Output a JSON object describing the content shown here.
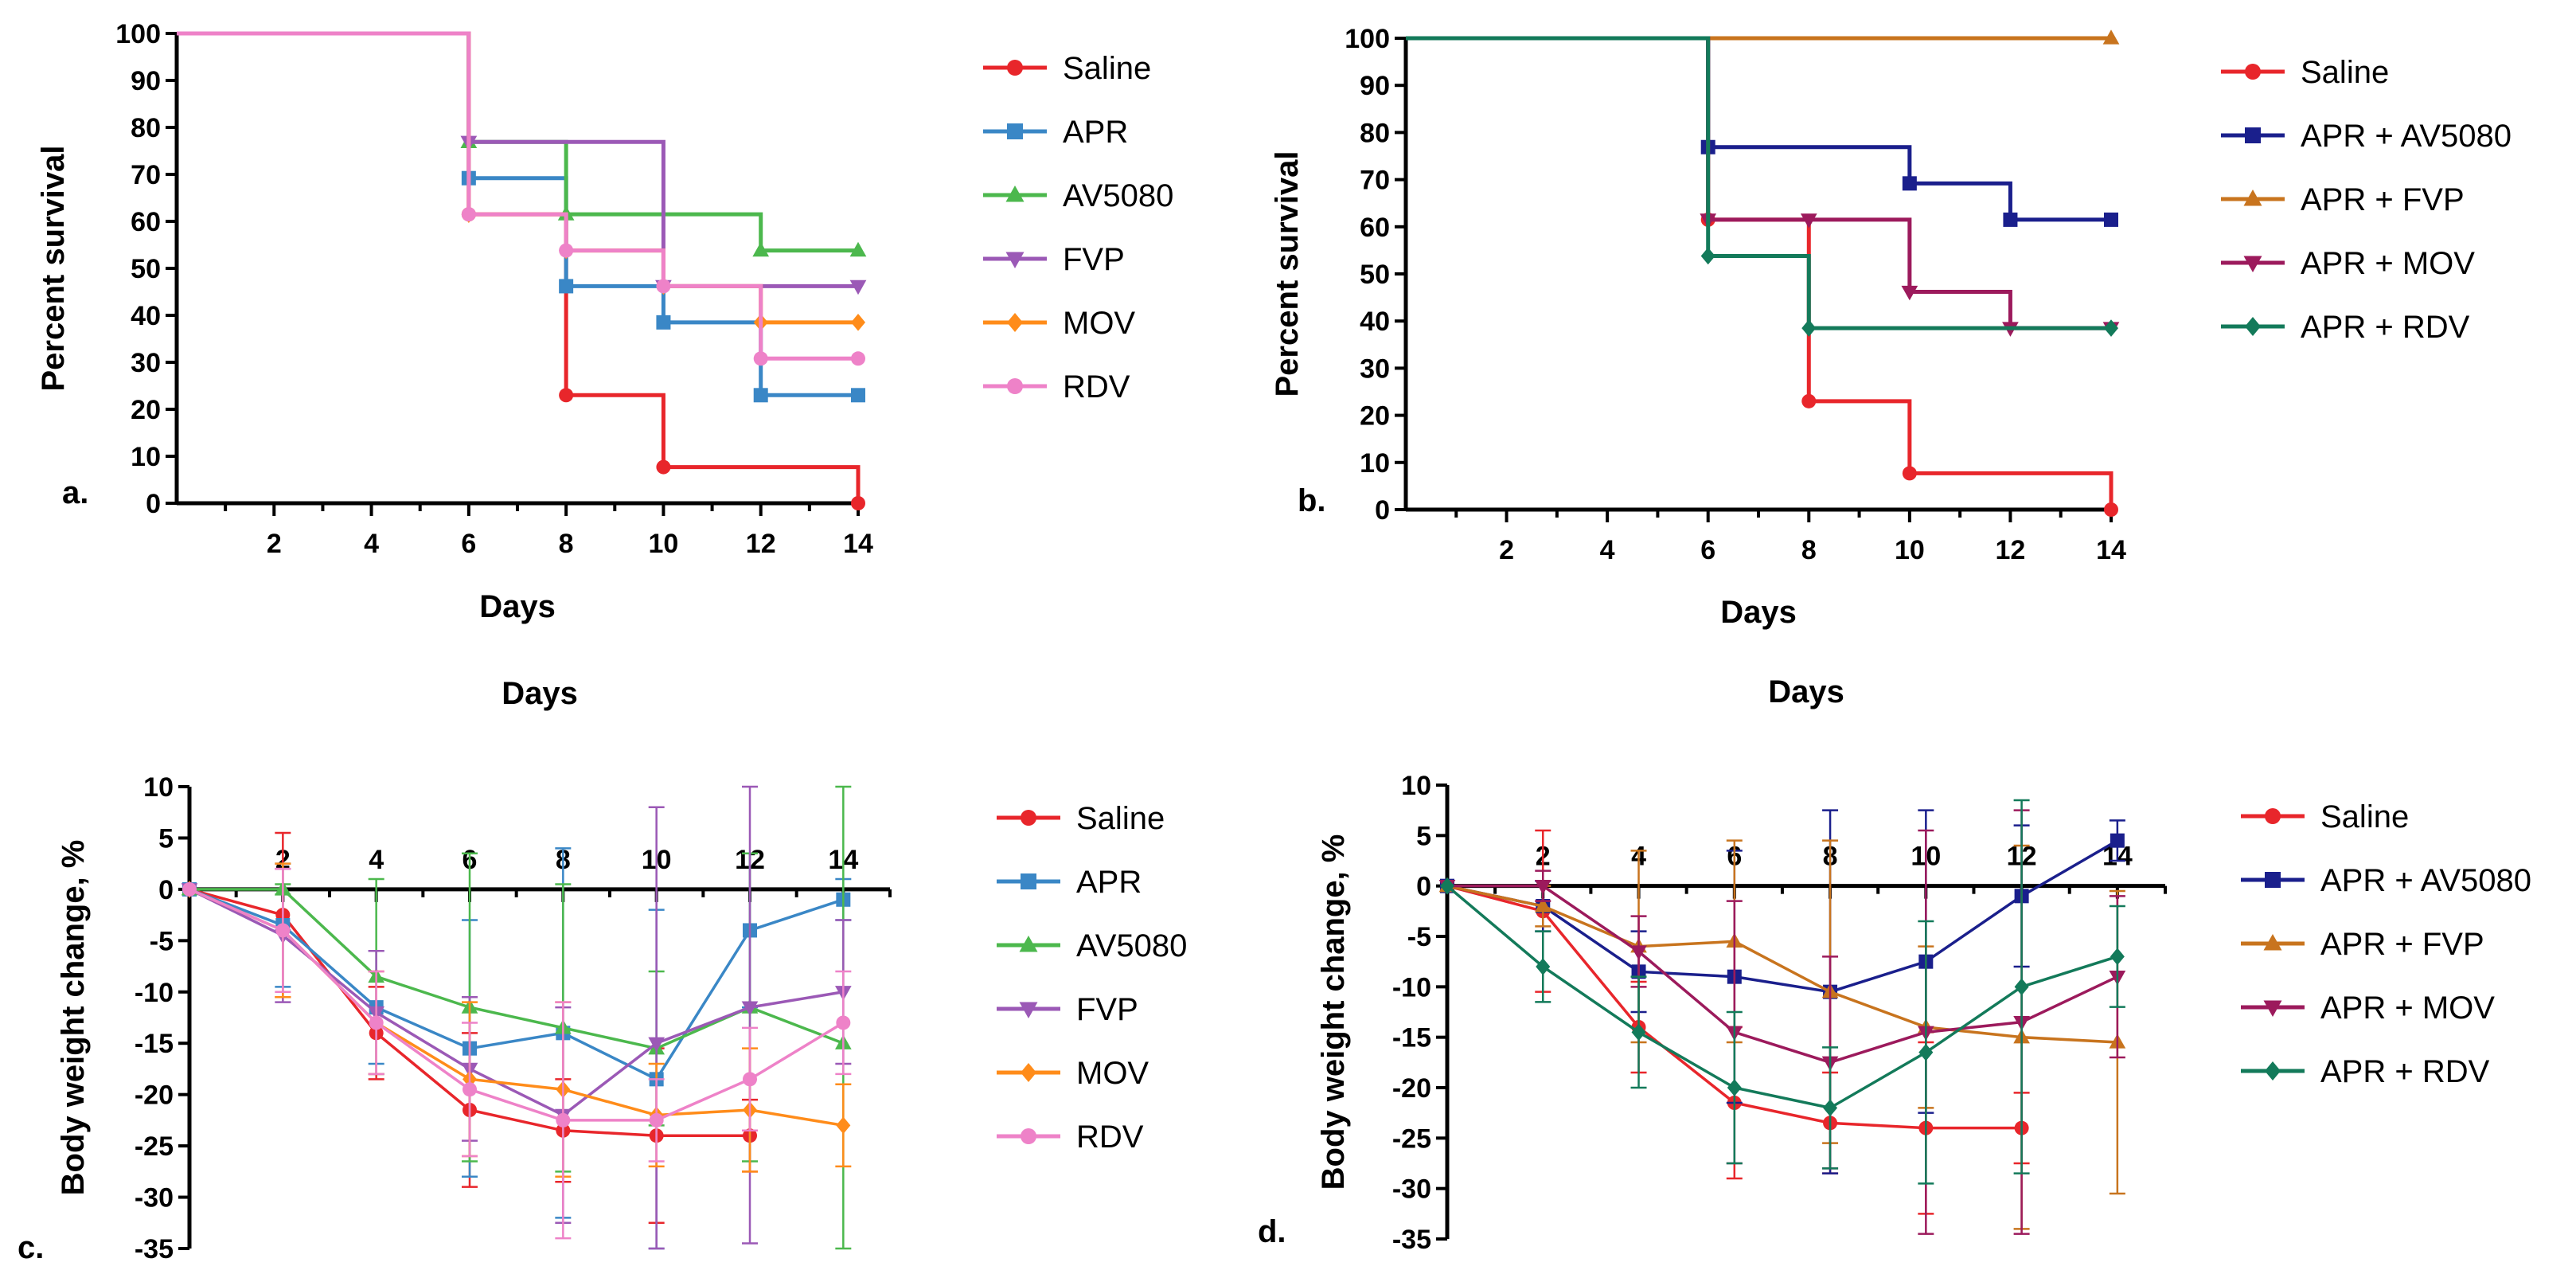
{
  "chart_data": [
    {
      "type": "line",
      "panel": "a.",
      "title": "",
      "xlabel": "Days",
      "ylabel": "Percent survival",
      "xlim": [
        0,
        14
      ],
      "ylim": [
        0,
        100
      ],
      "x_ticks": [
        2,
        4,
        6,
        8,
        10,
        12,
        14
      ],
      "y_ticks": [
        0,
        10,
        20,
        30,
        40,
        50,
        60,
        70,
        80,
        90,
        100
      ],
      "step": true,
      "legend_position": "right",
      "series": [
        {
          "name": "Saline",
          "color": "#e8262b",
          "marker": "circle",
          "x": [
            0,
            6,
            8,
            10,
            14
          ],
          "y": [
            100,
            61.5,
            23,
            7.7,
            0
          ]
        },
        {
          "name": "APR",
          "color": "#3a87c6",
          "marker": "square",
          "x": [
            0,
            6,
            8,
            10,
            12,
            14
          ],
          "y": [
            100,
            69.2,
            46.2,
            38.5,
            23,
            23
          ]
        },
        {
          "name": "AV5080",
          "color": "#4cb84d",
          "marker": "triangle-up",
          "x": [
            0,
            6,
            8,
            12,
            14
          ],
          "y": [
            100,
            76.9,
            61.5,
            53.8,
            53.8
          ]
        },
        {
          "name": "FVP",
          "color": "#9b59b6",
          "marker": "triangle-down",
          "x": [
            0,
            6,
            10,
            14
          ],
          "y": [
            100,
            76.9,
            46.2,
            46.2
          ]
        },
        {
          "name": "MOV",
          "color": "#ff8c1a",
          "marker": "diamond",
          "x": [
            0,
            6,
            8,
            10,
            12,
            14
          ],
          "y": [
            100,
            61.5,
            53.8,
            46.2,
            38.5,
            38.5
          ]
        },
        {
          "name": "RDV",
          "color": "#ee82c8",
          "marker": "circle",
          "x": [
            0,
            6,
            8,
            10,
            12,
            14
          ],
          "y": [
            100,
            61.5,
            53.8,
            46.2,
            30.8,
            30.8
          ]
        }
      ]
    },
    {
      "type": "line",
      "panel": "b.",
      "title": "",
      "xlabel": "Days",
      "ylabel": "Percent survival",
      "xlim": [
        0,
        14
      ],
      "ylim": [
        0,
        100
      ],
      "x_ticks": [
        2,
        4,
        6,
        8,
        10,
        12,
        14
      ],
      "y_ticks": [
        0,
        10,
        20,
        30,
        40,
        50,
        60,
        70,
        80,
        90,
        100
      ],
      "step": true,
      "legend_position": "right",
      "series": [
        {
          "name": "Saline",
          "color": "#e8262b",
          "marker": "circle",
          "x": [
            0,
            6,
            8,
            10,
            14
          ],
          "y": [
            100,
            61.5,
            23,
            7.7,
            0
          ]
        },
        {
          "name": "APR + AV5080",
          "color": "#1a1f8c",
          "marker": "square",
          "x": [
            0,
            6,
            10,
            12,
            14
          ],
          "y": [
            100,
            76.9,
            69.2,
            61.5,
            61.5
          ]
        },
        {
          "name": "APR + FVP",
          "color": "#c8741e",
          "marker": "triangle-up",
          "x": [
            0,
            14
          ],
          "y": [
            100,
            100
          ]
        },
        {
          "name": "APR + MOV",
          "color": "#9c1a5c",
          "marker": "triangle-down",
          "x": [
            0,
            6,
            8,
            10,
            12,
            14
          ],
          "y": [
            100,
            61.5,
            61.5,
            46.2,
            38.5,
            38.5
          ]
        },
        {
          "name": "APR + RDV",
          "color": "#137a5a",
          "marker": "diamond",
          "x": [
            0,
            6,
            8,
            14
          ],
          "y": [
            100,
            53.8,
            38.5,
            38.5
          ]
        }
      ]
    },
    {
      "type": "line",
      "panel": "c.",
      "title": "Days",
      "xlabel": "",
      "ylabel": "Body weight change, %",
      "xlim": [
        0,
        15
      ],
      "ylim": [
        -35,
        10
      ],
      "x_ticks": [
        2,
        4,
        6,
        8,
        10,
        12,
        14
      ],
      "y_ticks": [
        10,
        5,
        0,
        -5,
        -10,
        -15,
        -20,
        -25,
        -30,
        -35
      ],
      "legend_position": "right",
      "series": [
        {
          "name": "Saline",
          "color": "#e8262b",
          "marker": "circle",
          "x": [
            0,
            2,
            4,
            6,
            8,
            10,
            12
          ],
          "y": [
            0,
            -2.5,
            -14,
            -21.5,
            -23.5,
            -24,
            -24
          ],
          "err": [
            0,
            8,
            4.5,
            7.5,
            5,
            8.5,
            3.5
          ]
        },
        {
          "name": "APR",
          "color": "#3a87c6",
          "marker": "square",
          "x": [
            0,
            2,
            4,
            6,
            8,
            10,
            12,
            14
          ],
          "y": [
            0,
            -3.5,
            -11.5,
            -15.5,
            -14,
            -18.5,
            -4,
            -1
          ],
          "err": [
            0,
            6,
            5.5,
            12.5,
            18,
            16.5,
            7.5,
            2
          ]
        },
        {
          "name": "AV5080",
          "color": "#4cb84d",
          "marker": "triangle-up",
          "x": [
            0,
            2,
            4,
            6,
            8,
            10,
            12,
            14
          ],
          "y": [
            0,
            0,
            -8.5,
            -11.5,
            -13.5,
            -15.5,
            -11.5,
            -15
          ],
          "err": [
            0,
            0.5,
            9.5,
            15,
            14,
            7.5,
            15,
            25
          ]
        },
        {
          "name": "FVP",
          "color": "#9b59b6",
          "marker": "triangle-down",
          "x": [
            0,
            2,
            4,
            6,
            8,
            10,
            12,
            14
          ],
          "y": [
            0,
            -4.5,
            -12,
            -17.5,
            -22,
            -15,
            -11.5,
            -10
          ],
          "err": [
            0,
            6.5,
            6,
            7,
            10.5,
            23,
            23,
            7
          ]
        },
        {
          "name": "MOV",
          "color": "#ff8c1a",
          "marker": "diamond",
          "x": [
            0,
            2,
            4,
            6,
            8,
            10,
            12,
            14
          ],
          "y": [
            0,
            -4,
            -13,
            -18.5,
            -19.5,
            -22,
            -21.5,
            -23
          ],
          "err": [
            0,
            6.5,
            5,
            7.5,
            8.5,
            5,
            6,
            4
          ]
        },
        {
          "name": "RDV",
          "color": "#ee82c8",
          "marker": "circle",
          "x": [
            0,
            2,
            4,
            6,
            8,
            10,
            12,
            14
          ],
          "y": [
            0,
            -4,
            -13,
            -19.5,
            -22.5,
            -22.5,
            -18.5,
            -13
          ],
          "err": [
            0,
            6,
            5,
            6.5,
            11.5,
            4,
            5,
            5
          ]
        }
      ]
    },
    {
      "type": "line",
      "panel": "d.",
      "title": "Days",
      "xlabel": "",
      "ylabel": "Body weight change, %",
      "xlim": [
        0,
        15
      ],
      "ylim": [
        -35,
        10
      ],
      "x_ticks": [
        2,
        4,
        6,
        8,
        10,
        12,
        14
      ],
      "y_ticks": [
        10,
        5,
        0,
        -5,
        -10,
        -15,
        -20,
        -25,
        -30,
        -35
      ],
      "legend_position": "right",
      "series": [
        {
          "name": "Saline",
          "color": "#e8262b",
          "marker": "circle",
          "x": [
            0,
            2,
            4,
            6,
            8,
            10,
            12
          ],
          "y": [
            0,
            -2.5,
            -14,
            -21.5,
            -23.5,
            -24,
            -24
          ],
          "err": [
            0,
            8,
            4.5,
            7.5,
            5,
            8.5,
            3.5
          ]
        },
        {
          "name": "APR + AV5080",
          "color": "#1a1f8c",
          "marker": "square",
          "x": [
            0,
            2,
            4,
            6,
            8,
            10,
            12,
            14
          ],
          "y": [
            0,
            -2,
            -8.5,
            -9,
            -10.5,
            -7.5,
            -1,
            4.5
          ],
          "err": [
            0,
            2.5,
            4,
            12.5,
            18,
            15,
            7,
            2
          ]
        },
        {
          "name": "APR + FVP",
          "color": "#c8741e",
          "marker": "triangle-up",
          "x": [
            0,
            2,
            4,
            6,
            8,
            10,
            12,
            14
          ],
          "y": [
            0,
            -2,
            -6,
            -5.5,
            -10.5,
            -14,
            -15,
            -15.5
          ],
          "err": [
            0,
            2,
            9.5,
            10,
            15,
            8,
            19,
            15
          ]
        },
        {
          "name": "APR + MOV",
          "color": "#9c1a5c",
          "marker": "triangle-down",
          "x": [
            0,
            2,
            4,
            6,
            8,
            10,
            12,
            14
          ],
          "y": [
            0,
            0,
            -6.5,
            -14.5,
            -17.5,
            -14.5,
            -13.5,
            -9
          ],
          "err": [
            0,
            1.5,
            3.5,
            13,
            10.5,
            20,
            21,
            8
          ]
        },
        {
          "name": "APR + RDV",
          "color": "#137a5a",
          "marker": "diamond",
          "x": [
            0,
            2,
            4,
            6,
            8,
            10,
            12,
            14
          ],
          "y": [
            0,
            -8,
            -14.5,
            -20,
            -22,
            -16.5,
            -10,
            -7
          ],
          "err": [
            0,
            3.5,
            5.5,
            7.5,
            6,
            13,
            18.5,
            5
          ]
        }
      ]
    }
  ]
}
